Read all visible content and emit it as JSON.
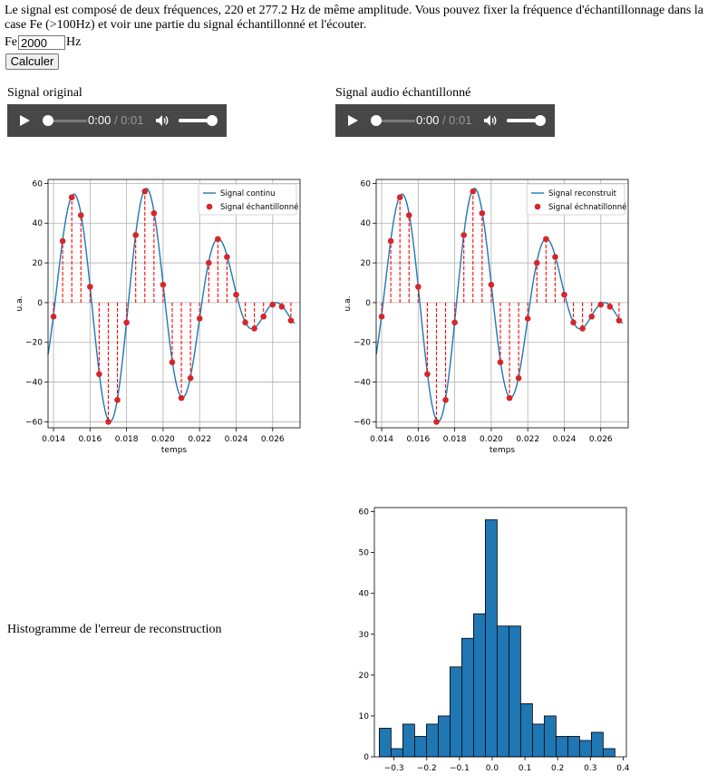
{
  "intro_text": "Le signal est composé de deux fréquences, 220 et 277.2 Hz de même amplitude. Vous pouvez fixer la fréquence d'échantillonnage dans la case Fe (>100Hz) et voir une partie du signal échantillonné et l'écouter.",
  "form": {
    "fe_label": "Fe",
    "fe_value": "2000",
    "fe_unit": "Hz",
    "calc_button": "Calculer"
  },
  "audio": {
    "original": {
      "label": "Signal original",
      "current_time": "0:00",
      "duration": "/ 0:01"
    },
    "sampled": {
      "label": "Signal audio échantillonné",
      "current_time": "0:00",
      "duration": "/ 0:01"
    }
  },
  "histogram_label": "Histogramme de l'erreur de reconstruction",
  "colors": {
    "line": "#1f77b4",
    "sample": "#d62728",
    "stem": "#ff0000",
    "bar": "#1f77b4",
    "grid": "#b0b0b0"
  },
  "chart_data": [
    {
      "type": "line",
      "xlabel": "temps",
      "ylabel": "u.a.",
      "xlim": [
        0.0137,
        0.0275
      ],
      "ylim": [
        -63,
        62
      ],
      "xticks": [
        "0.014",
        "0.016",
        "0.018",
        "0.020",
        "0.022",
        "0.024",
        "0.026"
      ],
      "yticks": [
        "60",
        "40",
        "20",
        "0",
        "−20",
        "−40",
        "−60"
      ],
      "grid": true,
      "legend_position": "top-right",
      "series": [
        {
          "name": "Signal continu",
          "style": "line",
          "amplitude": 30,
          "frequencies_hz": [
            220,
            277.2
          ],
          "x_range": [
            0.0137,
            0.0272
          ]
        },
        {
          "name": "Signal échantillonné",
          "style": "points+stems",
          "x": [
            0.014,
            0.0145,
            0.015,
            0.0155,
            0.016,
            0.0165,
            0.017,
            0.0175,
            0.018,
            0.0185,
            0.019,
            0.0195,
            0.02,
            0.0205,
            0.021,
            0.0215,
            0.022,
            0.0225,
            0.023,
            0.0235,
            0.024,
            0.0245,
            0.025,
            0.0255,
            0.026,
            0.0265,
            0.027
          ],
          "y": [
            -7,
            31,
            53,
            44,
            8,
            -36,
            -60,
            -49,
            -10,
            34,
            56,
            45,
            9,
            -30,
            -48,
            -38,
            -8,
            20,
            32,
            23,
            4,
            -10,
            -13,
            -7,
            -1,
            -2,
            -9
          ]
        }
      ]
    },
    {
      "type": "line",
      "xlabel": "temps",
      "ylabel": "u.a.",
      "xlim": [
        0.0137,
        0.0275
      ],
      "ylim": [
        -63,
        62
      ],
      "xticks": [
        "0.014",
        "0.016",
        "0.018",
        "0.020",
        "0.022",
        "0.024",
        "0.026"
      ],
      "yticks": [
        "60",
        "40",
        "20",
        "0",
        "−20",
        "−40",
        "−60"
      ],
      "grid": true,
      "legend_position": "top-right",
      "series": [
        {
          "name": "Signal reconstruit",
          "style": "line",
          "amplitude": 30,
          "frequencies_hz": [
            220,
            277.2
          ],
          "x_range": [
            0.0137,
            0.0272
          ]
        },
        {
          "name": "Signal échnatillonné",
          "style": "points+stems",
          "x": [
            0.014,
            0.0145,
            0.015,
            0.0155,
            0.016,
            0.0165,
            0.017,
            0.0175,
            0.018,
            0.0185,
            0.019,
            0.0195,
            0.02,
            0.0205,
            0.021,
            0.0215,
            0.022,
            0.0225,
            0.023,
            0.0235,
            0.024,
            0.0245,
            0.025,
            0.0255,
            0.026,
            0.0265,
            0.027
          ],
          "y": [
            -7,
            31,
            53,
            44,
            8,
            -36,
            -60,
            -49,
            -10,
            34,
            56,
            45,
            9,
            -30,
            -48,
            -38,
            -8,
            20,
            32,
            23,
            4,
            -10,
            -13,
            -7,
            -1,
            -2,
            -9
          ]
        }
      ]
    },
    {
      "type": "bar",
      "title": "",
      "xlim": [
        -0.36,
        0.41
      ],
      "ylim": [
        0,
        61
      ],
      "xticks": [
        "−0.3",
        "−0.2",
        "−0.1",
        "0.0",
        "0.1",
        "0.2",
        "0.3",
        "0.4"
      ],
      "yticks": [
        "60",
        "50",
        "40",
        "30",
        "20",
        "10",
        "0"
      ],
      "grid": false,
      "bin_edges": [
        -0.345,
        -0.309,
        -0.273,
        -0.237,
        -0.201,
        -0.165,
        -0.129,
        -0.093,
        -0.057,
        -0.021,
        0.015,
        0.051,
        0.087,
        0.123,
        0.159,
        0.195,
        0.231,
        0.267,
        0.303,
        0.339,
        0.375
      ],
      "counts": [
        7,
        2,
        8,
        5,
        8,
        10,
        22,
        29,
        35,
        58,
        32,
        32,
        13,
        8,
        10,
        5,
        5,
        4,
        6,
        2
      ]
    }
  ]
}
